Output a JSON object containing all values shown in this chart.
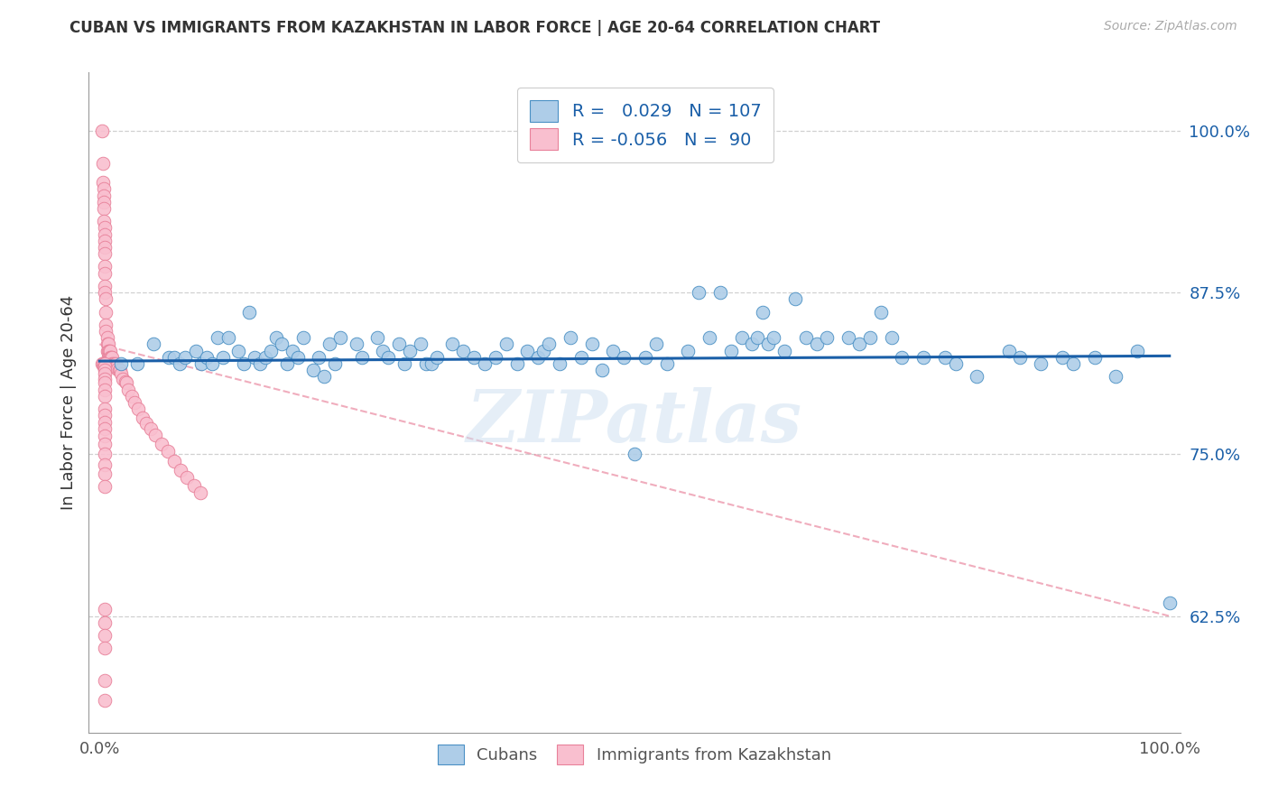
{
  "title": "CUBAN VS IMMIGRANTS FROM KAZAKHSTAN IN LABOR FORCE | AGE 20-64 CORRELATION CHART",
  "source": "Source: ZipAtlas.com",
  "ylabel": "In Labor Force | Age 20-64",
  "watermark": "ZIPatlas",
  "legend_blue_r": "0.029",
  "legend_blue_n": "107",
  "legend_pink_r": "-0.056",
  "legend_pink_n": "90",
  "ytick_labels": [
    "62.5%",
    "75.0%",
    "87.5%",
    "100.0%"
  ],
  "ytick_values": [
    0.625,
    0.75,
    0.875,
    1.0
  ],
  "xlim": [
    -0.01,
    1.01
  ],
  "ylim": [
    0.535,
    1.045
  ],
  "blue_color": "#aecde8",
  "blue_edge_color": "#4a90c4",
  "blue_line_color": "#1a5fa8",
  "pink_color": "#f9bfcf",
  "pink_edge_color": "#e8819a",
  "pink_line_color": "#e8819a",
  "blue_scatter_x": [
    0.02,
    0.035,
    0.05,
    0.065,
    0.07,
    0.075,
    0.08,
    0.09,
    0.095,
    0.1,
    0.105,
    0.11,
    0.115,
    0.12,
    0.13,
    0.135,
    0.14,
    0.145,
    0.15,
    0.155,
    0.16,
    0.165,
    0.17,
    0.175,
    0.18,
    0.185,
    0.19,
    0.2,
    0.205,
    0.21,
    0.215,
    0.22,
    0.225,
    0.24,
    0.245,
    0.26,
    0.265,
    0.27,
    0.28,
    0.285,
    0.29,
    0.3,
    0.305,
    0.31,
    0.315,
    0.33,
    0.34,
    0.35,
    0.36,
    0.37,
    0.38,
    0.39,
    0.4,
    0.41,
    0.415,
    0.42,
    0.43,
    0.44,
    0.45,
    0.46,
    0.47,
    0.48,
    0.49,
    0.5,
    0.51,
    0.52,
    0.53,
    0.55,
    0.56,
    0.57,
    0.58,
    0.59,
    0.6,
    0.61,
    0.615,
    0.62,
    0.625,
    0.63,
    0.64,
    0.65,
    0.66,
    0.67,
    0.68,
    0.7,
    0.71,
    0.72,
    0.73,
    0.74,
    0.75,
    0.77,
    0.79,
    0.8,
    0.82,
    0.85,
    0.86,
    0.88,
    0.9,
    0.91,
    0.93,
    0.95,
    0.97,
    1.0
  ],
  "blue_scatter_y": [
    0.82,
    0.82,
    0.835,
    0.825,
    0.825,
    0.82,
    0.825,
    0.83,
    0.82,
    0.825,
    0.82,
    0.84,
    0.825,
    0.84,
    0.83,
    0.82,
    0.86,
    0.825,
    0.82,
    0.825,
    0.83,
    0.84,
    0.835,
    0.82,
    0.83,
    0.825,
    0.84,
    0.815,
    0.825,
    0.81,
    0.835,
    0.82,
    0.84,
    0.835,
    0.825,
    0.84,
    0.83,
    0.825,
    0.835,
    0.82,
    0.83,
    0.835,
    0.82,
    0.82,
    0.825,
    0.835,
    0.83,
    0.825,
    0.82,
    0.825,
    0.835,
    0.82,
    0.83,
    0.825,
    0.83,
    0.835,
    0.82,
    0.84,
    0.825,
    0.835,
    0.815,
    0.83,
    0.825,
    0.75,
    0.825,
    0.835,
    0.82,
    0.83,
    0.875,
    0.84,
    0.875,
    0.83,
    0.84,
    0.835,
    0.84,
    0.86,
    0.835,
    0.84,
    0.83,
    0.87,
    0.84,
    0.835,
    0.84,
    0.84,
    0.835,
    0.84,
    0.86,
    0.84,
    0.825,
    0.825,
    0.825,
    0.82,
    0.81,
    0.83,
    0.825,
    0.82,
    0.825,
    0.82,
    0.825,
    0.81,
    0.83,
    0.635
  ],
  "pink_scatter_x": [
    0.002,
    0.003,
    0.003,
    0.004,
    0.004,
    0.004,
    0.004,
    0.004,
    0.005,
    0.005,
    0.005,
    0.005,
    0.005,
    0.005,
    0.005,
    0.005,
    0.005,
    0.006,
    0.006,
    0.006,
    0.006,
    0.007,
    0.007,
    0.007,
    0.008,
    0.008,
    0.008,
    0.009,
    0.009,
    0.01,
    0.01,
    0.011,
    0.011,
    0.012,
    0.012,
    0.013,
    0.013,
    0.014,
    0.015,
    0.015,
    0.016,
    0.017,
    0.018,
    0.019,
    0.02,
    0.022,
    0.024,
    0.025,
    0.027,
    0.03,
    0.033,
    0.036,
    0.04,
    0.044,
    0.048,
    0.052,
    0.058,
    0.064,
    0.07,
    0.076,
    0.082,
    0.088,
    0.094,
    0.002,
    0.003,
    0.004,
    0.005,
    0.005,
    0.005,
    0.005,
    0.005,
    0.005,
    0.005,
    0.005,
    0.005,
    0.005,
    0.005,
    0.005,
    0.005,
    0.005,
    0.005,
    0.005,
    0.005,
    0.005,
    0.005,
    0.005,
    0.005,
    0.005,
    0.005,
    0.005
  ],
  "pink_scatter_y": [
    1.0,
    0.975,
    0.96,
    0.955,
    0.95,
    0.945,
    0.94,
    0.93,
    0.925,
    0.92,
    0.915,
    0.91,
    0.905,
    0.895,
    0.89,
    0.88,
    0.875,
    0.87,
    0.86,
    0.85,
    0.845,
    0.84,
    0.835,
    0.83,
    0.835,
    0.83,
    0.825,
    0.83,
    0.825,
    0.83,
    0.825,
    0.825,
    0.82,
    0.825,
    0.82,
    0.82,
    0.818,
    0.818,
    0.82,
    0.818,
    0.818,
    0.816,
    0.815,
    0.815,
    0.812,
    0.808,
    0.806,
    0.805,
    0.8,
    0.795,
    0.79,
    0.785,
    0.778,
    0.774,
    0.77,
    0.765,
    0.758,
    0.752,
    0.745,
    0.738,
    0.732,
    0.726,
    0.72,
    0.82,
    0.82,
    0.818,
    0.82,
    0.818,
    0.815,
    0.812,
    0.808,
    0.805,
    0.8,
    0.795,
    0.785,
    0.78,
    0.775,
    0.77,
    0.764,
    0.758,
    0.75,
    0.742,
    0.735,
    0.725,
    0.63,
    0.62,
    0.61,
    0.6,
    0.575,
    0.56
  ],
  "blue_trend_x0": 0.0,
  "blue_trend_x1": 1.0,
  "blue_trend_y0": 0.822,
  "blue_trend_y1": 0.826,
  "pink_trend_x0": 0.0,
  "pink_trend_x1": 1.0,
  "pink_trend_y0": 0.835,
  "pink_trend_y1": 0.625
}
